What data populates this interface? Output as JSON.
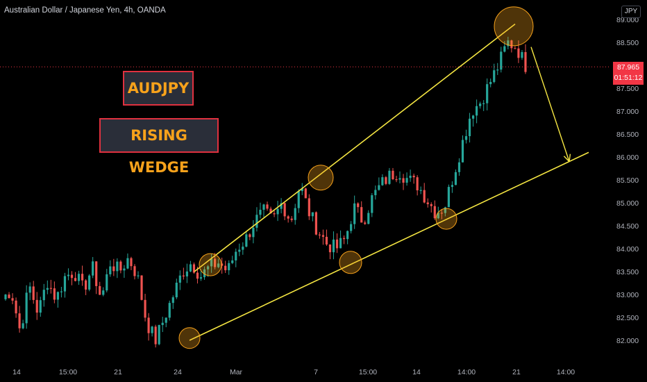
{
  "header": {
    "title": "Australian Dollar / Japanese Yen, 4h, OANDA",
    "currency_unit": "JPY"
  },
  "annotations": {
    "symbol_label": "AUDJPY",
    "pattern_label": "RISING WEDGE"
  },
  "last_price": {
    "value": "87.965",
    "countdown": "01:51:12"
  },
  "colors": {
    "background": "#000000",
    "up_candle": "#26a69a",
    "down_candle": "#ef5350",
    "trendline": "#f5e642",
    "highlight_circle": "#f7a21b",
    "label_text": "#f7a21b",
    "label_border": "#e0313f",
    "price_tag": "#f23645"
  },
  "chart_data": {
    "type": "candlestick",
    "title": "Australian Dollar / Japanese Yen, 4h, OANDA",
    "y_axis": {
      "unit": "JPY",
      "ticks": [
        "82.000",
        "82.500",
        "83.000",
        "83.500",
        "84.000",
        "84.500",
        "85.000",
        "85.500",
        "86.000",
        "86.500",
        "87.000",
        "87.500",
        "88.500",
        "89.000"
      ],
      "range": [
        81.8,
        89.2
      ]
    },
    "x_axis": {
      "ticks": [
        "14",
        "15:00",
        "21",
        "24",
        "Mar",
        "7",
        "15:00",
        "14",
        "14:00",
        "21",
        "14:00"
      ]
    },
    "price_keypoints": [
      82.9,
      83.1,
      82.2,
      83.2,
      82.6,
      83.3,
      82.9,
      83.4,
      83.5,
      83.1,
      83.6,
      82.9,
      83.7,
      83.5,
      83.8,
      83.4,
      82.4,
      82.0,
      82.5,
      83.0,
      83.5,
      83.7,
      83.4,
      83.6,
      83.7,
      83.5,
      84.0,
      84.2,
      84.6,
      84.8,
      84.6,
      85.0,
      84.6,
      85.4,
      84.8,
      84.4,
      84.1,
      84.0,
      84.2,
      84.9,
      84.6,
      85.1,
      85.4,
      85.6,
      85.7,
      85.5,
      85.4,
      85.1,
      84.8,
      84.9,
      85.6,
      86.3,
      87.0,
      87.2,
      87.6,
      88.0,
      88.5,
      88.4,
      88.0
    ],
    "trendlines": {
      "upper": {
        "from": [
          82.5,
          83.5
        ],
        "to": [
          89.0,
          88.9
        ]
      },
      "lower": {
        "from": [
          82.5,
          82.0
        ],
        "to": [
          89.0,
          86.1
        ]
      }
    },
    "highlight_points": [
      {
        "price": 82.05
      },
      {
        "price": 83.65
      },
      {
        "price": 83.7
      },
      {
        "price": 85.55
      },
      {
        "price": 84.65
      },
      {
        "price": 88.85
      }
    ],
    "projection_arrow": {
      "from_price": 88.4,
      "to_price": 85.9
    },
    "last_price": 87.965
  }
}
